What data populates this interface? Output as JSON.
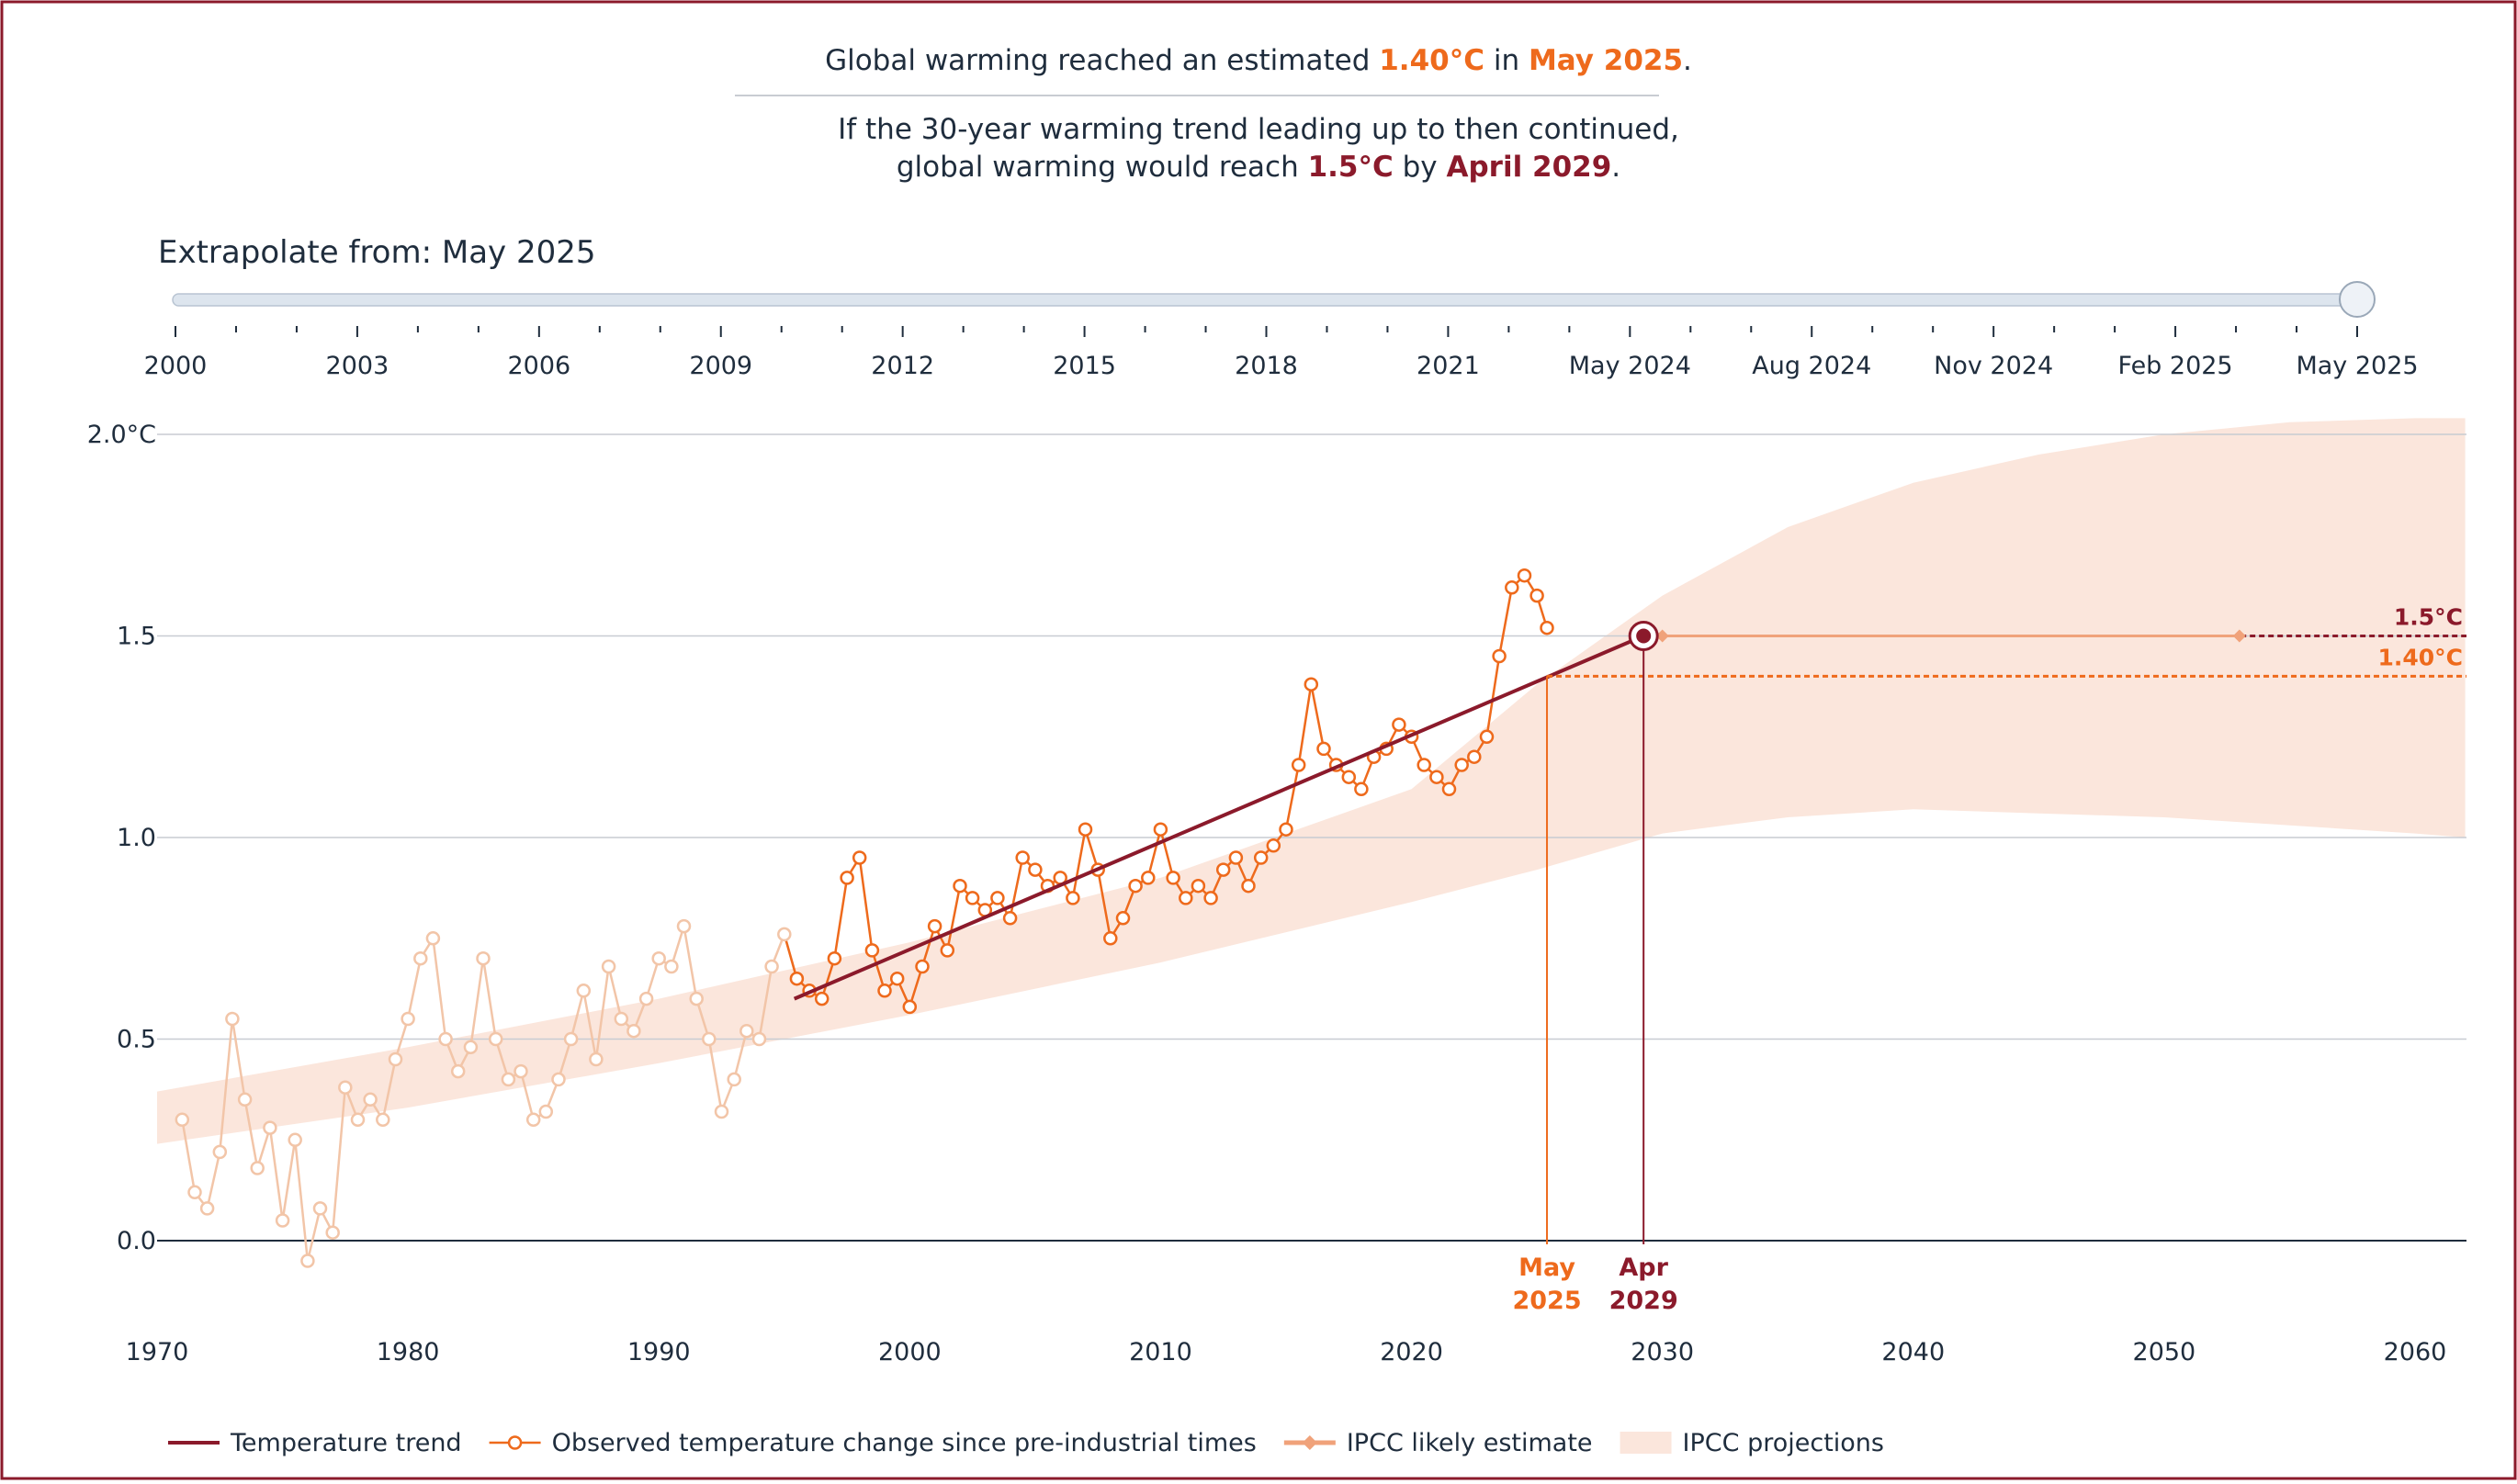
{
  "headline": {
    "part1": "Global warming reached an estimated ",
    "value": "1.40°C",
    "part2": " in ",
    "date": "May 2025",
    "part3": "."
  },
  "subline": {
    "line1": "If the 30-year warming trend leading up to then continued,",
    "line2_part1": "global warming would reach ",
    "threshold": "1.5°C",
    "line2_part2": " by ",
    "crossing_date": "April 2029",
    "line2_part3": "."
  },
  "slider": {
    "label": "Extrapolate from: May 2025",
    "tick_labels": [
      "2000",
      "2003",
      "2006",
      "2009",
      "2012",
      "2015",
      "2018",
      "2021",
      "May 2024",
      "Aug 2024",
      "Nov 2024",
      "Feb 2025",
      "May 2025"
    ],
    "selected_fraction": 1.0
  },
  "chart_data": {
    "type": "line",
    "y_tick_labels": [
      "2.0°C",
      "1.5",
      "1.0",
      "0.5",
      "0.0"
    ],
    "x_tick_labels": [
      "1970",
      "1980",
      "1990",
      "2000",
      "2010",
      "2020",
      "2030",
      "2040",
      "2050",
      "2060"
    ],
    "xlim": [
      1970,
      2062
    ],
    "ylim": [
      -0.35,
      2.0
    ],
    "trend": {
      "name": "Temperature trend",
      "x": [
        1995.4,
        2029.25
      ],
      "y": [
        0.6,
        1.5
      ]
    },
    "ipcc_band": {
      "name": "IPCC projections",
      "x": [
        1970,
        1980,
        1990,
        2000,
        2010,
        2020,
        2025,
        2030,
        2035,
        2040,
        2045,
        2050,
        2055,
        2060,
        2062
      ],
      "lower": [
        0.24,
        0.33,
        0.44,
        0.56,
        0.69,
        0.84,
        0.92,
        1.01,
        1.05,
        1.07,
        1.06,
        1.05,
        1.03,
        1.01,
        1.0
      ],
      "upper": [
        0.37,
        0.48,
        0.6,
        0.74,
        0.9,
        1.12,
        1.38,
        1.6,
        1.77,
        1.88,
        1.95,
        2.0,
        2.03,
        2.04,
        2.04
      ]
    },
    "observed": {
      "name": "Observed temperature change since pre-industrial times",
      "x": [
        1971,
        1971.5,
        1972,
        1972.5,
        1973,
        1973.5,
        1974,
        1974.5,
        1975,
        1975.5,
        1976,
        1976.5,
        1977,
        1977.5,
        1978,
        1978.5,
        1979,
        1979.5,
        1980,
        1980.5,
        1981,
        1981.5,
        1982,
        1982.5,
        1983,
        1983.5,
        1984,
        1984.5,
        1985,
        1985.5,
        1986,
        1986.5,
        1987,
        1987.5,
        1988,
        1988.5,
        1989,
        1989.5,
        1990,
        1990.5,
        1991,
        1991.5,
        1992,
        1992.5,
        1993,
        1993.5,
        1994,
        1994.5,
        1995,
        1995.5,
        1996,
        1996.5,
        1997,
        1997.5,
        1998,
        1998.5,
        1999,
        1999.5,
        2000,
        2000.5,
        2001,
        2001.5,
        2002,
        2002.5,
        2003,
        2003.5,
        2004,
        2004.5,
        2005,
        2005.5,
        2006,
        2006.5,
        2007,
        2007.5,
        2008,
        2008.5,
        2009,
        2009.5,
        2010,
        2010.5,
        2011,
        2011.5,
        2012,
        2012.5,
        2013,
        2013.5,
        2014,
        2014.5,
        2015,
        2015.5,
        2016,
        2016.5,
        2017,
        2017.5,
        2018,
        2018.5,
        2019,
        2019.5,
        2020,
        2020.5,
        2021,
        2021.5,
        2022,
        2022.5,
        2023,
        2023.5,
        2024,
        2024.5,
        2025,
        2025.4
      ],
      "y": [
        0.3,
        0.12,
        0.08,
        0.22,
        0.55,
        0.35,
        0.18,
        0.28,
        0.05,
        0.25,
        -0.05,
        0.08,
        0.02,
        0.38,
        0.3,
        0.35,
        0.3,
        0.45,
        0.55,
        0.7,
        0.75,
        0.5,
        0.42,
        0.48,
        0.7,
        0.5,
        0.4,
        0.42,
        0.3,
        0.32,
        0.4,
        0.5,
        0.62,
        0.45,
        0.68,
        0.55,
        0.52,
        0.6,
        0.7,
        0.68,
        0.78,
        0.6,
        0.5,
        0.32,
        0.4,
        0.52,
        0.5,
        0.68,
        0.76,
        0.65,
        0.62,
        0.6,
        0.7,
        0.9,
        0.95,
        0.72,
        0.62,
        0.65,
        0.58,
        0.68,
        0.78,
        0.72,
        0.88,
        0.85,
        0.82,
        0.85,
        0.8,
        0.95,
        0.92,
        0.88,
        0.9,
        0.85,
        1.02,
        0.92,
        0.75,
        0.8,
        0.88,
        0.9,
        1.02,
        0.9,
        0.85,
        0.88,
        0.85,
        0.92,
        0.95,
        0.88,
        0.95,
        0.98,
        1.02,
        1.18,
        1.38,
        1.22,
        1.18,
        1.15,
        1.12,
        1.2,
        1.22,
        1.28,
        1.25,
        1.18,
        1.15,
        1.12,
        1.18,
        1.2,
        1.25,
        1.45,
        1.62,
        1.65,
        1.6,
        1.52
      ]
    },
    "ipcc_likely": {
      "name": "IPCC likely estimate",
      "x": [
        2030.0,
        2053.0
      ],
      "y": [
        1.5,
        1.5
      ]
    },
    "threshold_line": {
      "label": "1.5°C",
      "value": 1.5
    },
    "current_line": {
      "label": "1.40°C",
      "value": 1.4
    },
    "markers": {
      "current": {
        "x": 2025.4,
        "line1": "May",
        "line2": "2025"
      },
      "crossing": {
        "x": 2029.25,
        "line1": "Apr",
        "line2": "2029"
      }
    },
    "observed_split_year": 1995.4
  },
  "legend": {
    "items": [
      {
        "label": "Temperature trend",
        "kind": "line"
      },
      {
        "label": "Observed temperature change since pre-industrial times",
        "kind": "observed"
      },
      {
        "label": "IPCC likely estimate",
        "kind": "likely"
      },
      {
        "label": "IPCC projections",
        "kind": "band"
      }
    ]
  },
  "colors": {
    "frame": "#8b1a2b",
    "text": "#1f2d3d",
    "orange": "#ee6a1c",
    "orange_faded": "#f2c5a8",
    "band": "#fbe6dc",
    "trend": "#8b1a2b",
    "likely": "#f0a27a",
    "grid": "#c8ccd2",
    "slider_track": "#dde5ee"
  }
}
